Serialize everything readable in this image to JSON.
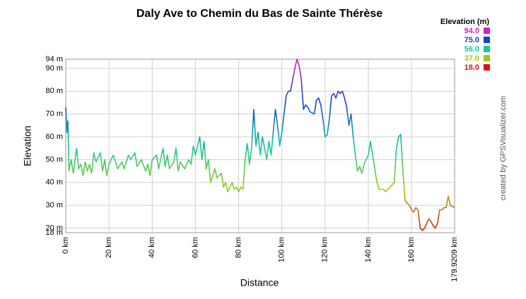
{
  "chart_data": {
    "type": "line",
    "title": "Daly Ave to Chemin du Bas de Sainte Thérèse",
    "x_label": "Distance",
    "y_label": "Elevation",
    "credit": "created by GPSVisualizer.com",
    "x": [
      0,
      0.5,
      1,
      1.5,
      2.5,
      3.5,
      5,
      6,
      7,
      8,
      9,
      10,
      11,
      12,
      13,
      14,
      16,
      17,
      18,
      19,
      20,
      22,
      24,
      26,
      27,
      29,
      30,
      32,
      33,
      35,
      37,
      38,
      39,
      40,
      42,
      43,
      45,
      46,
      47,
      48,
      50,
      51,
      52,
      53,
      55,
      57,
      58,
      59,
      60,
      62,
      63,
      64,
      65,
      66,
      67,
      69,
      70,
      72,
      73,
      74,
      75,
      77,
      78,
      79,
      80,
      81,
      82,
      83,
      84,
      85,
      86,
      87,
      88,
      89,
      90,
      91,
      92,
      93,
      94,
      95,
      96,
      97,
      98,
      99,
      100,
      101,
      102,
      103,
      104,
      105,
      106,
      107,
      108,
      109,
      110,
      111,
      112,
      113,
      115,
      116,
      117,
      118,
      119,
      120,
      121,
      122,
      123,
      124,
      125,
      126,
      127,
      128,
      129,
      130,
      131,
      132,
      133,
      134,
      135,
      136,
      137,
      138,
      140,
      141,
      142,
      143,
      144,
      145,
      147,
      148,
      149,
      150,
      152,
      153,
      154,
      155,
      156,
      157,
      158,
      159,
      160,
      161,
      162,
      163,
      164,
      165,
      166,
      167,
      168,
      169,
      170,
      171,
      172,
      173,
      174,
      175,
      176,
      177,
      178,
      179.9209
    ],
    "values": [
      73,
      62,
      67,
      45,
      50,
      44,
      55,
      46,
      48,
      43,
      49,
      45,
      48,
      44,
      53,
      49,
      53,
      45,
      50,
      43,
      48,
      52,
      46,
      49,
      46,
      52,
      50,
      53,
      47,
      50,
      45,
      48,
      43,
      50,
      52,
      46,
      55,
      47,
      52,
      46,
      49,
      55,
      45,
      49,
      46,
      50,
      48,
      56,
      52,
      60,
      50,
      58,
      46,
      50,
      40,
      46,
      42,
      44,
      38,
      40,
      36,
      40,
      37,
      38,
      36,
      38,
      37,
      50,
      57,
      48,
      55,
      72,
      56,
      62,
      52,
      60,
      55,
      50,
      58,
      52,
      62,
      72,
      65,
      56,
      62,
      70,
      78,
      80,
      80,
      85,
      90,
      94,
      91,
      85,
      72,
      74,
      73,
      71,
      70,
      76,
      77,
      74,
      68,
      60,
      61,
      68,
      78,
      79,
      77,
      80,
      79,
      80,
      77,
      73,
      65,
      70,
      60,
      52,
      45,
      47,
      44,
      48,
      52,
      58,
      52,
      46,
      40,
      37,
      37,
      36,
      37,
      38,
      40,
      55,
      60,
      61,
      45,
      32,
      31,
      30,
      28,
      27,
      29,
      28,
      20,
      19,
      20,
      22,
      24,
      23,
      21,
      20,
      22,
      28,
      28,
      29,
      29,
      34,
      30,
      29
    ],
    "xlim": [
      0,
      179.9209
    ],
    "xticks": [
      {
        "value": 0,
        "label": "0 km"
      },
      {
        "value": 20,
        "label": "20 km"
      },
      {
        "value": 40,
        "label": "40 km"
      },
      {
        "value": 60,
        "label": "60 km"
      },
      {
        "value": 80,
        "label": "80 km"
      },
      {
        "value": 100,
        "label": "100 km"
      },
      {
        "value": 120,
        "label": "120 km"
      },
      {
        "value": 140,
        "label": "140 km"
      },
      {
        "value": 160,
        "label": "160 km"
      },
      {
        "value": 179.9209,
        "label": "179.9209 km"
      }
    ],
    "ylim": [
      18,
      94
    ],
    "yticks": [
      {
        "value": 18,
        "label": "18 m"
      },
      {
        "value": 20,
        "label": "20 m"
      },
      {
        "value": 30,
        "label": "30 m"
      },
      {
        "value": 40,
        "label": "40 m"
      },
      {
        "value": 50,
        "label": "50 m"
      },
      {
        "value": 60,
        "label": "60 m"
      },
      {
        "value": 70,
        "label": "70 m"
      },
      {
        "value": 80,
        "label": "80 m"
      },
      {
        "value": 90,
        "label": "90 m"
      },
      {
        "value": 94,
        "label": "94 m"
      }
    ],
    "grid": true,
    "color_scale": {
      "title": "Elevation (m)",
      "stops": [
        {
          "value": 94,
          "label": "94.0",
          "color": "#cc22cc"
        },
        {
          "value": 75,
          "label": "75.0",
          "color": "#1144cc"
        },
        {
          "value": 56,
          "label": "56.0",
          "color": "#11c8a0"
        },
        {
          "value": 37,
          "label": "37.0",
          "color": "#99cc11"
        },
        {
          "value": 18,
          "label": "18.0",
          "color": "#dd1111"
        }
      ]
    }
  }
}
